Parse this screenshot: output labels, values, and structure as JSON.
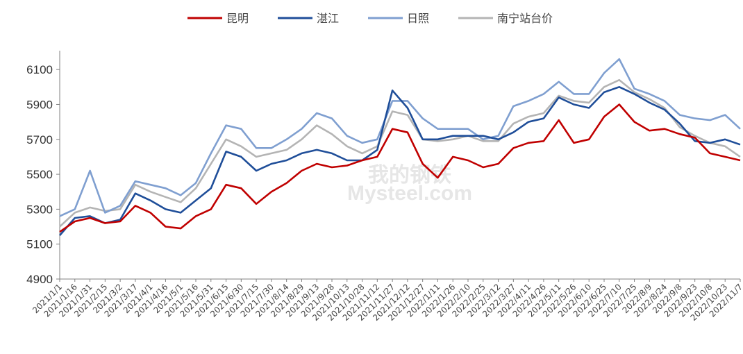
{
  "watermark": [
    "我的钢铁",
    "Mysteel.com"
  ],
  "chart_data": {
    "type": "line",
    "title": "",
    "xlabel": "",
    "ylabel": "",
    "ylim": [
      4900,
      6200
    ],
    "yticks": [
      4900,
      5100,
      5300,
      5500,
      5700,
      5900,
      6100
    ],
    "grid": false,
    "legend_position": "top-center",
    "categories": [
      "2021/1/1",
      "2021/1/16",
      "2021/1/31",
      "2021/2/15",
      "2021/3/2",
      "2021/3/17",
      "2021/4/1",
      "2021/4/16",
      "2021/5/1",
      "2021/5/16",
      "2021/5/31",
      "2021/6/15",
      "2021/6/30",
      "2021/7/15",
      "2021/7/30",
      "2021/8/14",
      "2021/8/29",
      "2021/9/13",
      "2021/9/28",
      "2021/10/13",
      "2021/10/28",
      "2021/11/12",
      "2021/11/27",
      "2021/12/12",
      "2021/12/27",
      "2022/1/11",
      "2022/1/26",
      "2022/2/10",
      "2022/2/25",
      "2022/3/12",
      "2022/3/27",
      "2022/4/11",
      "2022/4/26",
      "2022/5/11",
      "2022/5/26",
      "2022/6/10",
      "2022/6/25",
      "2022/7/10",
      "2022/7/25",
      "2022/8/9",
      "2022/8/24",
      "2022/9/8",
      "2022/9/23",
      "2022/10/8",
      "2022/10/23",
      "2022/11/7"
    ],
    "series": [
      {
        "name": "昆明",
        "color": "#c00000",
        "values": [
          5170,
          5230,
          5250,
          5220,
          5230,
          5320,
          5280,
          5200,
          5190,
          5260,
          5300,
          5440,
          5420,
          5330,
          5400,
          5450,
          5520,
          5560,
          5540,
          5550,
          5580,
          5600,
          5760,
          5740,
          5560,
          5480,
          5600,
          5580,
          5540,
          5560,
          5650,
          5680,
          5690,
          5810,
          5680,
          5700,
          5830,
          5900,
          5800,
          5750,
          5760,
          5730,
          5710,
          5620,
          5600,
          5580
        ]
      },
      {
        "name": "湛江",
        "color": "#1f4e99",
        "values": [
          5150,
          5250,
          5260,
          5220,
          5240,
          5390,
          5350,
          5300,
          5280,
          5350,
          5420,
          5630,
          5600,
          5520,
          5560,
          5580,
          5620,
          5640,
          5620,
          5580,
          5580,
          5640,
          5980,
          5880,
          5700,
          5700,
          5720,
          5720,
          5720,
          5700,
          5740,
          5800,
          5820,
          5940,
          5900,
          5880,
          5970,
          6000,
          5960,
          5910,
          5870,
          5790,
          5690,
          5680,
          5700,
          5670
        ]
      },
      {
        "name": "日照",
        "color": "#7f9fd0",
        "values": [
          5260,
          5300,
          5520,
          5280,
          5320,
          5460,
          5440,
          5420,
          5380,
          5450,
          5620,
          5780,
          5760,
          5650,
          5650,
          5700,
          5760,
          5850,
          5820,
          5720,
          5680,
          5700,
          5920,
          5920,
          5820,
          5760,
          5760,
          5760,
          5700,
          5720,
          5890,
          5920,
          5960,
          6030,
          5960,
          5960,
          6080,
          6160,
          5990,
          5960,
          5920,
          5840,
          5820,
          5810,
          5840,
          5760
        ]
      },
      {
        "name": "南宁站台价",
        "color": "#b4b4b4",
        "values": [
          5200,
          5280,
          5310,
          5290,
          5300,
          5440,
          5400,
          5370,
          5340,
          5420,
          5560,
          5700,
          5660,
          5600,
          5620,
          5640,
          5700,
          5780,
          5730,
          5660,
          5620,
          5660,
          5860,
          5840,
          5700,
          5690,
          5700,
          5720,
          5690,
          5690,
          5790,
          5830,
          5850,
          5950,
          5920,
          5910,
          6000,
          6040,
          5970,
          5930,
          5880,
          5770,
          5720,
          5680,
          5660,
          5600
        ]
      }
    ]
  }
}
